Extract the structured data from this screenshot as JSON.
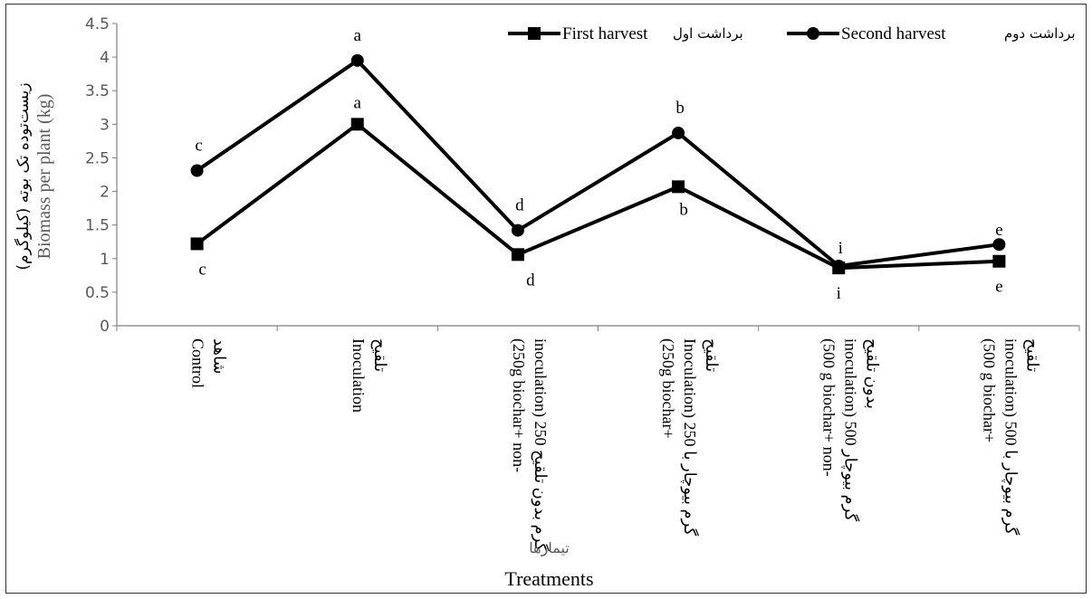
{
  "chart_data": {
    "type": "line",
    "categories": [
      [
        "Control",
        "شاهد"
      ],
      [
        "Inoculation",
        "تلقیح"
      ],
      [
        "(250g biochar+ non-",
        "inoculation) 250 گرم بدون تلقیح"
      ],
      [
        "(250g biochar+",
        "Inoculation) 250 گرم بیوچار با",
        "تلقیح"
      ],
      [
        "(500 g biochar+ non-",
        "inoculation)  500 گرم بیوچار",
        "بدون تلقیح"
      ],
      [
        "(500 g biochar+",
        "inoculation)  500 گرم بیوچار با",
        "تلقیح"
      ]
    ],
    "series": [
      {
        "name": "First harvest",
        "name_fa": "برداشت اول",
        "marker": "square",
        "values": [
          1.22,
          3.0,
          1.06,
          2.07,
          0.86,
          0.96
        ],
        "letters": [
          "c",
          "a",
          "d",
          "b",
          "i",
          "e"
        ]
      },
      {
        "name": "Second harvest",
        "name_fa": "برداشت دوم",
        "marker": "circle",
        "values": [
          2.31,
          3.95,
          1.42,
          2.87,
          0.89,
          1.21
        ],
        "letters": [
          "c",
          "a",
          "d",
          "b",
          "i",
          "e"
        ]
      }
    ],
    "xlabel": "Treatments",
    "xlabel_fa": "تیمارها",
    "ylabel": "Biomass per plant (kg)",
    "ylabel_fa": "(زیست‌توده تک بوته (کیلوگرم",
    "ylim": [
      0,
      4.5
    ],
    "yticks": [
      "0",
      "0.5",
      "1",
      "1.5",
      "2",
      "2.5",
      "3",
      "3.5",
      "4",
      "4.5"
    ],
    "grid": false,
    "legend_position": "top",
    "colors": {
      "line": "#000000",
      "axis": "#7f7f7f"
    }
  }
}
